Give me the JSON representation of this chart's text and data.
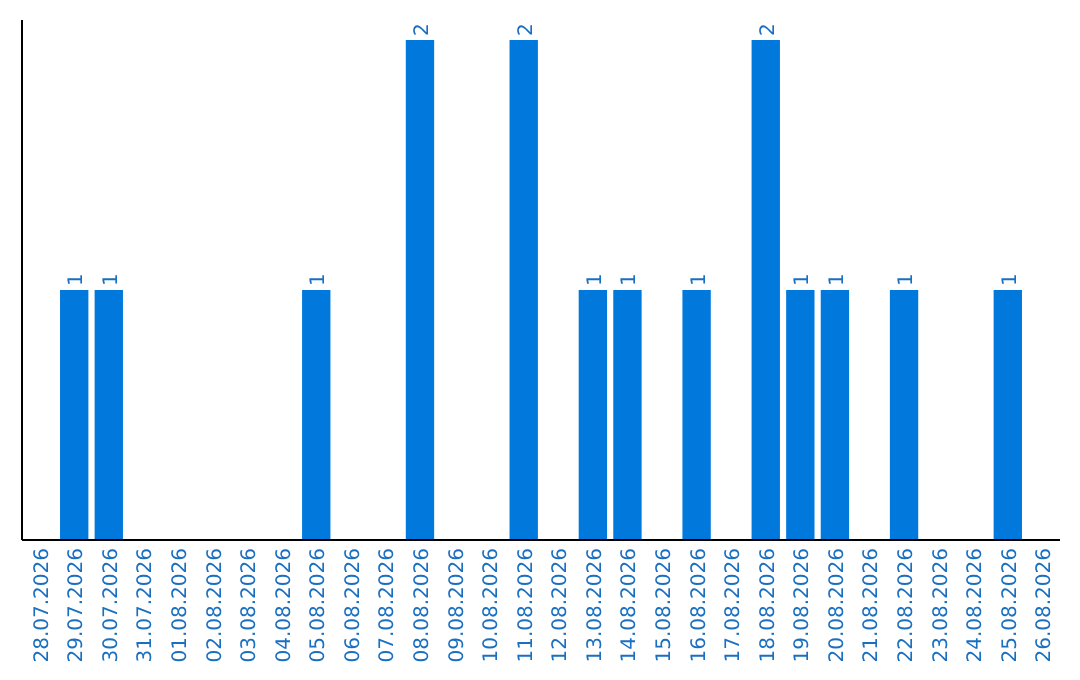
{
  "chart_data": {
    "type": "bar",
    "categories": [
      "28.07.2026",
      "29.07.2026",
      "30.07.2026",
      "31.07.2026",
      "01.08.2026",
      "02.08.2026",
      "03.08.2026",
      "04.08.2026",
      "05.08.2026",
      "06.08.2026",
      "07.08.2026",
      "08.08.2026",
      "09.08.2026",
      "10.08.2026",
      "11.08.2026",
      "12.08.2026",
      "13.08.2026",
      "14.08.2026",
      "15.08.2026",
      "16.08.2026",
      "17.08.2026",
      "18.08.2026",
      "19.08.2026",
      "20.08.2026",
      "21.08.2026",
      "22.08.2026",
      "23.08.2026",
      "24.08.2026",
      "25.08.2026",
      "26.08.2026"
    ],
    "values": [
      0,
      1,
      1,
      0,
      0,
      0,
      0,
      0,
      1,
      0,
      0,
      2,
      0,
      0,
      2,
      0,
      1,
      1,
      0,
      1,
      0,
      2,
      1,
      1,
      0,
      1,
      0,
      0,
      1,
      0
    ],
    "value_labels": [
      null,
      "1",
      "1",
      null,
      null,
      null,
      null,
      null,
      "1",
      null,
      null,
      "2",
      null,
      null,
      "2",
      null,
      "1",
      "1",
      null,
      "1",
      null,
      "2",
      "1",
      "1",
      null,
      "1",
      null,
      null,
      "1",
      null
    ],
    "color": "#0078dc",
    "ylim": [
      0,
      2
    ],
    "tick_labels": "x",
    "grid": false
  }
}
